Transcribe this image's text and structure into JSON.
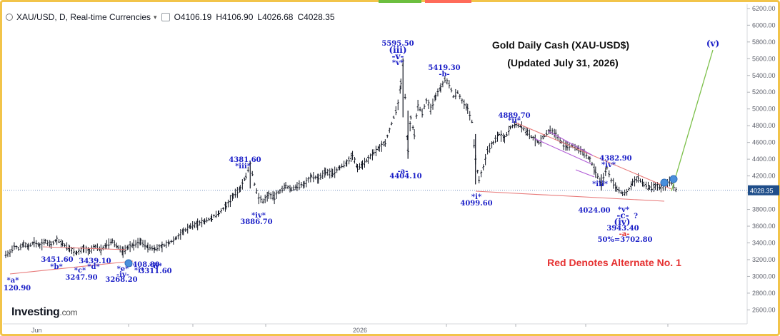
{
  "header": {
    "symbol": "XAU/USD, D, Real-time Currencies",
    "open_label": "O",
    "open": "4106.19",
    "high_label": "H",
    "high": "4106.90",
    "low_label": "L",
    "low": "4026.68",
    "close_label": "C",
    "close": "4028.35"
  },
  "brand": {
    "name": "Investing",
    "suffix": ".com"
  },
  "chart_data": {
    "type": "line",
    "title": "Gold Daily Cash (XAU-USD$)",
    "subtitle": "(Updated July 31, 2026)",
    "note": "Red Denotes Alternate No. 1",
    "ylim": [
      2450,
      6250
    ],
    "y_ticks": [
      2600,
      2800,
      3000,
      3200,
      3400,
      3600,
      3800,
      4000,
      4200,
      4400,
      4600,
      4800,
      5000,
      5200,
      5400,
      5600,
      5800,
      6000,
      6200
    ],
    "y_tick_labels": [
      "2600.00",
      "2800.00",
      "3000.00",
      "3200.00",
      "3400.00",
      "3600.00",
      "3800.00",
      "4000.00",
      "4200.00",
      "4400.00",
      "4600.00",
      "4800.00",
      "5000.00",
      "5200.00",
      "5400.00",
      "5600.00",
      "5800.00",
      "6000.00",
      "6200.00"
    ],
    "x_labels": [
      "Jun",
      "2026"
    ],
    "last_price_label": "4028.35",
    "last_price": 4028.35,
    "series": [
      {
        "values": [
          [
            0,
            3265
          ],
          [
            6,
            3280
          ],
          [
            12,
            3360
          ],
          [
            18,
            3330
          ],
          [
            25,
            3390
          ],
          [
            32,
            3355
          ],
          [
            40,
            3410
          ],
          [
            48,
            3370
          ],
          [
            56,
            3420
          ],
          [
            64,
            3380
          ],
          [
            72,
            3440
          ],
          [
            80,
            3390
          ],
          [
            90,
            3330
          ],
          [
            100,
            3280
          ],
          [
            110,
            3340
          ],
          [
            118,
            3300
          ],
          [
            126,
            3360
          ],
          [
            134,
            3320
          ],
          [
            142,
            3380
          ],
          [
            150,
            3420
          ],
          [
            158,
            3350
          ],
          [
            165,
            3300
          ],
          [
            172,
            3350
          ],
          [
            180,
            3380
          ],
          [
            190,
            3420
          ],
          [
            200,
            3350
          ],
          [
            210,
            3330
          ],
          [
            220,
            3360
          ],
          [
            230,
            3400
          ],
          [
            240,
            3460
          ],
          [
            250,
            3540
          ],
          [
            260,
            3600
          ],
          [
            270,
            3630
          ],
          [
            280,
            3660
          ],
          [
            290,
            3700
          ],
          [
            300,
            3760
          ],
          [
            310,
            3840
          ],
          [
            320,
            3960
          ],
          [
            330,
            4050
          ],
          [
            338,
            4200
          ],
          [
            344,
            4350
          ],
          [
            350,
            4100
          ],
          [
            356,
            3940
          ],
          [
            362,
            3900
          ],
          [
            370,
            3980
          ],
          [
            378,
            3950
          ],
          [
            386,
            4020
          ],
          [
            394,
            4080
          ],
          [
            402,
            4040
          ],
          [
            410,
            4080
          ],
          [
            420,
            4100
          ],
          [
            430,
            4200
          ],
          [
            440,
            4170
          ],
          [
            450,
            4250
          ],
          [
            460,
            4230
          ],
          [
            470,
            4300
          ],
          [
            480,
            4360
          ],
          [
            488,
            4450
          ],
          [
            495,
            4300
          ],
          [
            502,
            4340
          ],
          [
            510,
            4400
          ],
          [
            518,
            4480
          ],
          [
            526,
            4540
          ],
          [
            534,
            4600
          ],
          [
            540,
            4750
          ],
          [
            546,
            4900
          ],
          [
            552,
            5050
          ],
          [
            556,
            5300
          ],
          [
            559,
            5550
          ],
          [
            562,
            5150
          ],
          [
            566,
            4500
          ],
          [
            570,
            4900
          ],
          [
            575,
            4700
          ],
          [
            580,
            5050
          ],
          [
            586,
            4950
          ],
          [
            592,
            5100
          ],
          [
            598,
            5000
          ],
          [
            605,
            5150
          ],
          [
            612,
            5250
          ],
          [
            618,
            5350
          ],
          [
            624,
            5300
          ],
          [
            630,
            5150
          ],
          [
            636,
            5200
          ],
          [
            642,
            5100
          ],
          [
            650,
            5000
          ],
          [
            656,
            4850
          ],
          [
            661,
            4400
          ],
          [
            666,
            4150
          ],
          [
            672,
            4300
          ],
          [
            678,
            4500
          ],
          [
            686,
            4600
          ],
          [
            694,
            4700
          ],
          [
            702,
            4650
          ],
          [
            710,
            4780
          ],
          [
            718,
            4820
          ],
          [
            726,
            4790
          ],
          [
            734,
            4720
          ],
          [
            742,
            4650
          ],
          [
            750,
            4600
          ],
          [
            758,
            4680
          ],
          [
            766,
            4750
          ],
          [
            774,
            4700
          ],
          [
            782,
            4600
          ],
          [
            790,
            4550
          ],
          [
            798,
            4560
          ],
          [
            806,
            4520
          ],
          [
            814,
            4470
          ],
          [
            822,
            4400
          ],
          [
            830,
            4250
          ],
          [
            838,
            4100
          ],
          [
            846,
            4300
          ],
          [
            852,
            4150
          ],
          [
            860,
            4050
          ],
          [
            868,
            3990
          ],
          [
            874,
            4000
          ],
          [
            882,
            4120
          ],
          [
            890,
            4170
          ],
          [
            898,
            4100
          ],
          [
            906,
            4060
          ],
          [
            914,
            4080
          ],
          [
            922,
            4060
          ],
          [
            928,
            4100
          ],
          [
            934,
            4140
          ],
          [
            940,
            4080
          ],
          [
            944,
            4028
          ]
        ]
      }
    ],
    "wave_labels": [
      {
        "text": "3451.60"
      },
      {
        "text": "*b*"
      },
      {
        "text": "3439.10"
      },
      {
        "text": "*d*"
      },
      {
        "text": "3408.80"
      },
      {
        "text": "*i*"
      },
      {
        "text": "*a*"
      },
      {
        "text": "120.90"
      },
      {
        "text": "*c*"
      },
      {
        "text": "3247.90"
      },
      {
        "text": "*e*"
      },
      {
        "text": "-iv-"
      },
      {
        "text": "3268.20"
      },
      {
        "text": "*ii*"
      },
      {
        "text": "3311.60"
      },
      {
        "text": "4381.60"
      },
      {
        "text": "*iii*"
      },
      {
        "text": "*iv*"
      },
      {
        "text": "3886.70"
      },
      {
        "text": "5595.50"
      },
      {
        "text": "(iii)"
      },
      {
        "text": "-v-"
      },
      {
        "text": "*v*"
      },
      {
        "text": "-a-"
      },
      {
        "text": "4404.10"
      },
      {
        "text": "5419.30"
      },
      {
        "text": "-b-"
      },
      {
        "text": "4889.70"
      },
      {
        "text": "*ii*"
      },
      {
        "text": "*i*"
      },
      {
        "text": "4099.60"
      },
      {
        "text": "4382.90"
      },
      {
        "text": "*iv*"
      },
      {
        "text": "*iii*"
      },
      {
        "text": "4024.00"
      },
      {
        "text": "*v*"
      },
      {
        "text": "-c-"
      },
      {
        "text": "?"
      },
      {
        "text": "(iv)"
      },
      {
        "text": "3943.40"
      },
      {
        "text": "-a-"
      },
      {
        "text": "50%=3702.80"
      },
      {
        "text": "(v)"
      }
    ]
  },
  "colors": {
    "bars": "#131722",
    "wave_text": "#1b1fc7",
    "alt_red": "#e53030",
    "trendline": "#e87a7a",
    "channel": "#b05ad6",
    "projection": "#7cc04a",
    "price_badge": "#1f4e8a",
    "frame": "#f2c44a"
  }
}
